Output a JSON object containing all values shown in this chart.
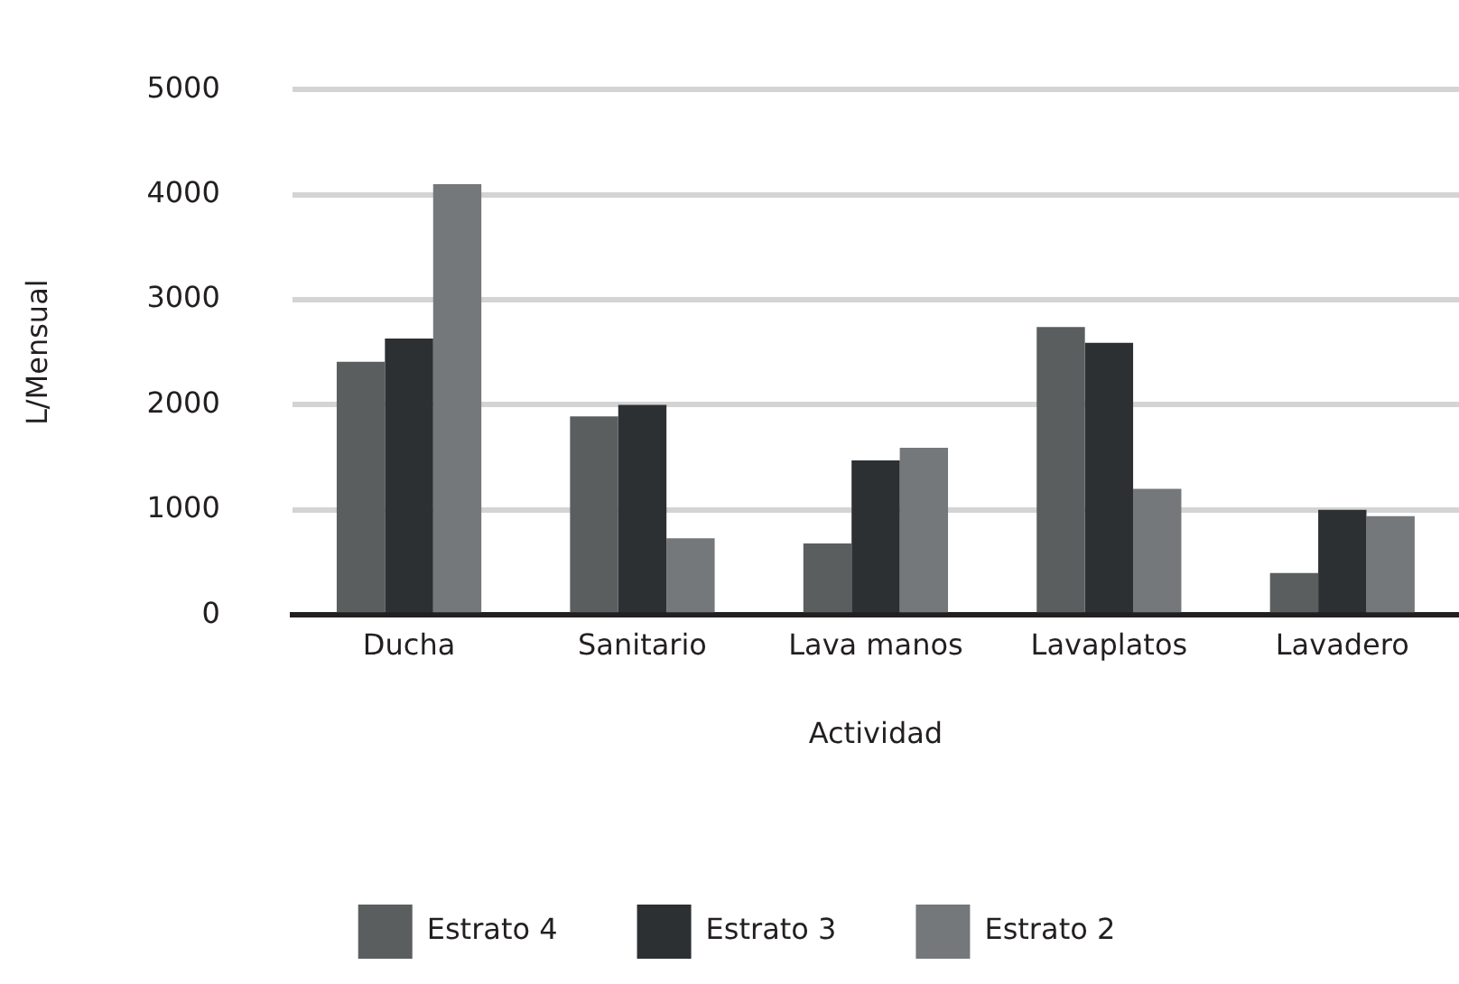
{
  "chart_data": {
    "type": "bar",
    "xlabel": "Actividad",
    "ylabel": "L/Mensual",
    "categories": [
      "Ducha",
      "Sanitario",
      "Lava manos",
      "Lavaplatos",
      "Lavadero"
    ],
    "series": [
      {
        "name": "Estrato 4",
        "color": "#5a5e5f",
        "values": [
          2410,
          1890,
          680,
          2740,
          400
        ]
      },
      {
        "name": "Estrato 3",
        "color": "#2d3033",
        "values": [
          2630,
          2000,
          1470,
          2590,
          1000
        ]
      },
      {
        "name": "Estrato 2",
        "color": "#75787b",
        "values": [
          4100,
          730,
          1590,
          1200,
          940
        ]
      }
    ],
    "ylim": [
      0,
      5000
    ],
    "yticks": [
      0,
      1000,
      2000,
      3000,
      4000,
      5000
    ],
    "grid": "y",
    "legend": "bottom"
  }
}
